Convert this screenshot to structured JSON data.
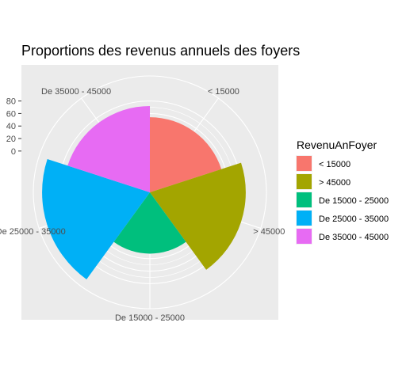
{
  "chart_data": {
    "type": "bar",
    "coord": "polar",
    "title": "Proportions des revenus annuels des foyers",
    "xlabel": "",
    "ylabel": "",
    "categories": [
      "< 15000",
      "> 45000",
      "De 15000 - 25000",
      "De 25000 - 35000",
      "De 35000 - 45000"
    ],
    "values": [
      54,
      87,
      32,
      106,
      72
    ],
    "colors": [
      "#F8766D",
      "#A3A500",
      "#00BF7D",
      "#00B0F6",
      "#E76BF3"
    ],
    "ylim": [
      -66,
      120
    ],
    "yticks": [
      0,
      20,
      40,
      60,
      80
    ],
    "ytick_labels": [
      "0",
      "20",
      "40",
      "60",
      "80"
    ],
    "legend": {
      "title": "RevenuAnFoyer",
      "position": "right",
      "entries": [
        "< 15000",
        "> 45000",
        "De 15000 - 25000",
        "De 25000 - 35000",
        "De 35000 - 45000"
      ]
    }
  }
}
